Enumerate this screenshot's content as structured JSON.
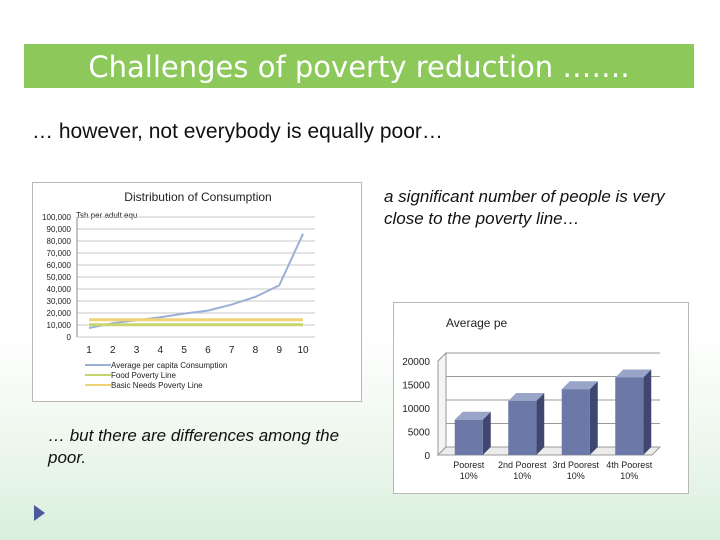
{
  "slide": {
    "title": "Challenges of poverty reduction …….",
    "subtitle": "… however, not everybody is equally poor…",
    "note_top": "a significant number of people is very close to the poverty line…",
    "note_bottom": "… but there are differences among the poor."
  },
  "colors": {
    "title_bg": "#8cc95a",
    "consumption_line": "#9bb0d6",
    "food_line": "#c5d66e",
    "basic_line": "#f0d277",
    "bar_fill": "#6b78a8"
  },
  "chart_data": [
    {
      "type": "line",
      "title": "Distribution of Consumption",
      "ylabel": "Tsh per adult equ",
      "x": [
        1,
        2,
        3,
        4,
        5,
        6,
        7,
        8,
        9,
        10
      ],
      "ylim": [
        0,
        100000
      ],
      "y_ticks": [
        "0",
        "10,000",
        "20,000",
        "30,000",
        "40,000",
        "50,000",
        "60,000",
        "70,000",
        "80,000",
        "90,000",
        "100,000"
      ],
      "series": [
        {
          "name": "Average per capita Consumption",
          "color": "#9bb0d6",
          "values": [
            7500,
            11500,
            14000,
            16500,
            19500,
            22000,
            27000,
            33500,
            43000,
            86000
          ]
        },
        {
          "name": "Food Poverty Line",
          "color": "#c5d66e",
          "values": [
            10200,
            10200,
            10200,
            10200,
            10200,
            10200,
            10200,
            10200,
            10200,
            10200
          ]
        },
        {
          "name": "Basic Needs Poverty Line",
          "color": "#f0d277",
          "values": [
            14400,
            14400,
            14400,
            14400,
            14400,
            14400,
            14400,
            14400,
            14400,
            14400
          ]
        }
      ],
      "legend": "bottom"
    },
    {
      "type": "bar",
      "title": "Average pe",
      "categories": [
        "Poorest 10%",
        "2nd Poorest 10%",
        "3rd Poorest 10%",
        "4th Poorest 10%"
      ],
      "values": [
        7500,
        11500,
        14000,
        16500
      ],
      "ylim": [
        0,
        20000
      ],
      "y_ticks": [
        "0",
        "5000",
        "10000",
        "15000",
        "20000"
      ]
    }
  ]
}
